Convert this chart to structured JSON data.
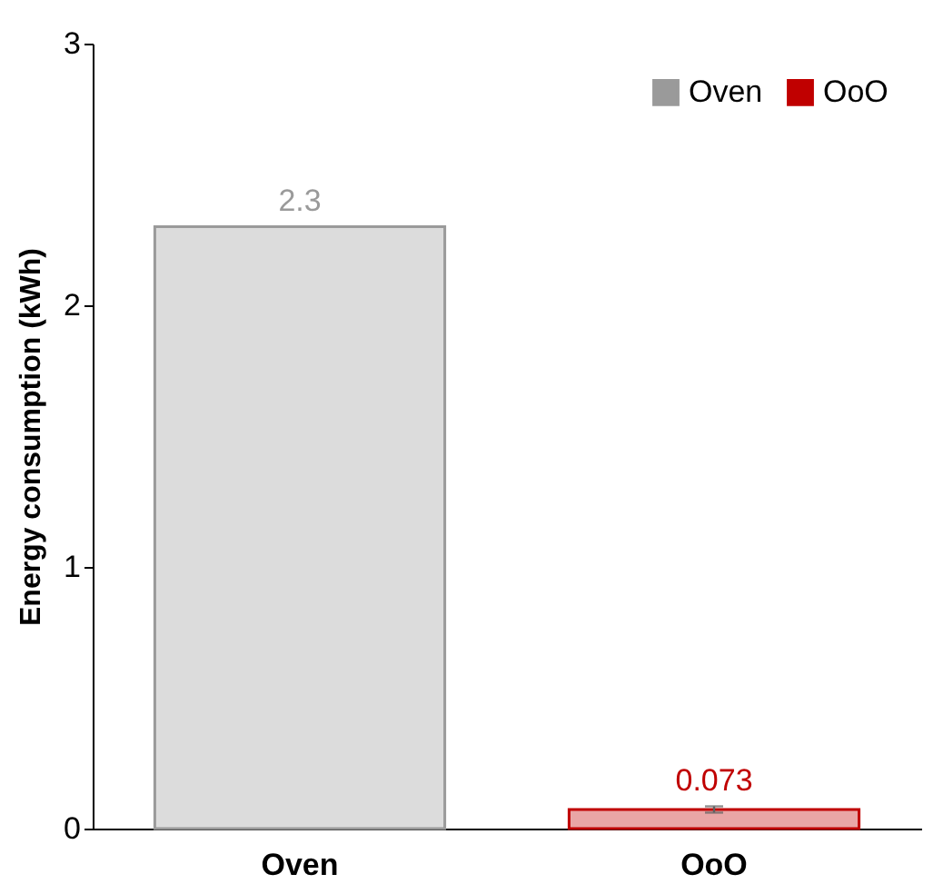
{
  "chart_data": {
    "type": "bar",
    "categories": [
      "Oven",
      "OoO"
    ],
    "series": [
      {
        "name": "Oven",
        "color": "#9a9a9a",
        "values": [
          2.3,
          null
        ]
      },
      {
        "name": "OoO",
        "color": "#c00000",
        "values": [
          null,
          0.073
        ],
        "errors": [
          null,
          0.012
        ]
      }
    ],
    "ylabel": "Energy consumption (kWh)",
    "ylim": [
      0,
      3
    ],
    "yticks": [
      0,
      1,
      2,
      3
    ],
    "grid": false,
    "legend": "top right",
    "data_labels": true
  }
}
